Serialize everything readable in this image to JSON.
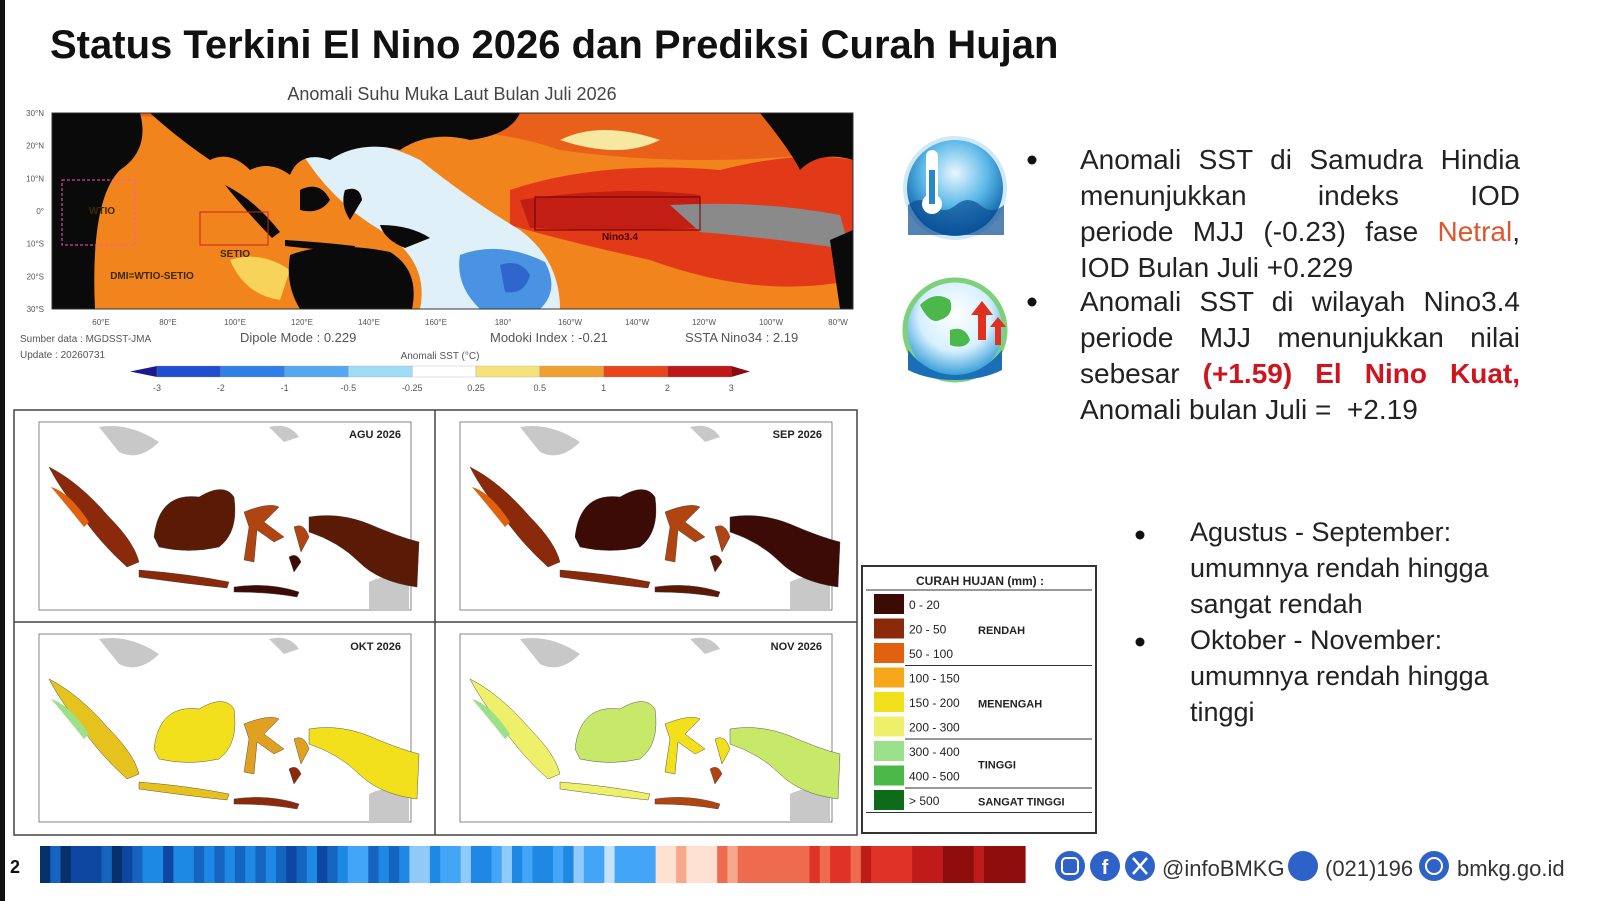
{
  "header": {
    "title": "Status Terkini El Nino 2026 dan Prediksi Curah Hujan"
  },
  "sst_map": {
    "title": "Anomali Suhu Muka Laut Bulan Juli 2026",
    "lat_labels": [
      "30°N",
      "20°N",
      "10°N",
      "0°",
      "10°S",
      "20°S",
      "30°S"
    ],
    "lon_labels": [
      "60°E",
      "80°E",
      "100°E",
      "120°E",
      "140°E",
      "160°E",
      "180°",
      "160°W",
      "140°W",
      "120°W",
      "100°W",
      "80°W"
    ],
    "region_labels": [
      "WTIO",
      "SETIO",
      "DMI=WTIO-SETIO",
      "Nino3.4"
    ],
    "source": "Sumber data : MGDSST-JMA",
    "update": "Update : 20260731",
    "dipole_mode": "Dipole Mode : 0.229",
    "modoki_index": "Modoki Index : -0.21",
    "ssta_nino34": "SSTA Nino34 : 2.19",
    "colorbar_title": "Anomali SST (°C)",
    "colorbar_labels": [
      "-3",
      "-2",
      "-1",
      "-0.5",
      "-0.25",
      "0.25",
      "0.5",
      "1",
      "2",
      "3"
    ]
  },
  "rain_maps": {
    "panels": [
      "AGU 2026",
      "SEP 2026",
      "OKT 2026",
      "NOV 2026"
    ],
    "legend": {
      "title": "CURAH HUJAN (mm) :",
      "ranges": [
        "0 - 20",
        "20 - 50",
        "50 - 100",
        "100 - 150",
        "150 - 200",
        "200 - 300",
        "300 - 400",
        "400 - 500",
        "> 500"
      ],
      "categories": [
        "RENDAH",
        "MENENGAH",
        "TINGGI",
        "SANGAT TINGGI"
      ]
    }
  },
  "sst_notes": [
    {
      "lines": [
        [
          {
            "text": "Anomali SST di Samudra Hindia"
          }
        ],
        [
          {
            "text": "menunjukkan indeks IOD"
          }
        ],
        [
          {
            "text": "periode MJJ (-0.23) fase "
          },
          {
            "text": "Netral",
            "color": "#e0562c"
          },
          {
            "text": ","
          }
        ],
        [
          {
            "text": "IOD Bulan Juli +0.229"
          }
        ]
      ]
    },
    {
      "lines": [
        [
          {
            "text": "Anomali SST di wilayah Nino3.4"
          }
        ],
        [
          {
            "text": "periode MJJ menunjukkan nilai"
          }
        ],
        [
          {
            "text": "sebesar "
          },
          {
            "text": "(+1.59) El Nino Kuat,",
            "color": "#d0141e",
            "bold": true
          }
        ],
        [
          {
            "text": "Anomali bulan Juli =  +2.19"
          }
        ]
      ]
    }
  ],
  "outlook": [
    {
      "lines": [
        "Agustus - September:",
        "umumnya rendah hingga",
        "sangat rendah"
      ]
    },
    {
      "lines": [
        "Oktober - November:",
        "umumnya rendah hingga",
        "tinggi"
      ]
    }
  ],
  "footer": {
    "page": "2",
    "social": "@infoBMKG",
    "phone": "(021)196",
    "website": "bmkg.go.id"
  }
}
